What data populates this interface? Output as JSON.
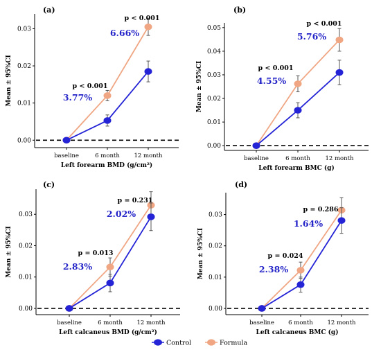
{
  "colors": {
    "control": "#2424d6",
    "formula": "#f0a683",
    "percent_text": "#2424c8"
  },
  "legend": [
    {
      "label": "Control",
      "color": "#2424d6"
    },
    {
      "label": "Formula",
      "color": "#f0a683"
    }
  ],
  "chart_data": [
    {
      "type": "line",
      "panel_label": "(a)",
      "categories": [
        "baseline",
        "6 month",
        "12 month"
      ],
      "xlabel": "Left forearm BMD (g/cm²)",
      "ylabel": "Mean ± 95%CI",
      "ylim": [
        -0.002,
        0.034
      ],
      "yticks": [
        0.0,
        0.01,
        0.02,
        0.03
      ],
      "ytick_labels": [
        "0.00",
        "0.01",
        "0.02",
        "0.03"
      ],
      "reference_line": 0,
      "series": [
        {
          "name": "Control",
          "values": [
            0,
            0.0053,
            0.0185
          ],
          "ci_low": [
            0,
            0.0038,
            0.0157
          ],
          "ci_high": [
            0,
            0.0068,
            0.0213
          ]
        },
        {
          "name": "Formula",
          "values": [
            0,
            0.012,
            0.0305
          ],
          "ci_low": [
            0,
            0.0106,
            0.0282
          ],
          "ci_high": [
            0,
            0.0134,
            0.0328
          ]
        }
      ],
      "annotations": [
        {
          "category": "6 month",
          "p_value": "p < 0.001",
          "percent": "3.77%"
        },
        {
          "category": "12 month",
          "p_value": "p < 0.001",
          "percent": "6.66%"
        }
      ]
    },
    {
      "type": "line",
      "panel_label": "(b)",
      "categories": [
        "baseline",
        "6 month",
        "12 month"
      ],
      "xlabel": "Left forearm BMC (g)",
      "ylabel": "Mean ± 95%CI",
      "ylim": [
        -0.002,
        0.052
      ],
      "yticks": [
        0.0,
        0.01,
        0.02,
        0.03,
        0.04,
        0.05
      ],
      "ytick_labels": [
        "0.00",
        "0.01",
        "0.02",
        "0.03",
        "0.04",
        "0.05"
      ],
      "reference_line": 0,
      "series": [
        {
          "name": "Control",
          "values": [
            0,
            0.015,
            0.031
          ],
          "ci_low": [
            0,
            0.0118,
            0.0258
          ],
          "ci_high": [
            0,
            0.0182,
            0.0362
          ]
        },
        {
          "name": "Formula",
          "values": [
            0,
            0.0262,
            0.0448
          ],
          "ci_low": [
            0,
            0.0228,
            0.04
          ],
          "ci_high": [
            0,
            0.0296,
            0.0496
          ]
        }
      ],
      "annotations": [
        {
          "category": "6 month",
          "p_value": "p < 0.001",
          "percent": "4.55%"
        },
        {
          "category": "12 month",
          "p_value": "p < 0.001",
          "percent": "5.76%"
        }
      ]
    },
    {
      "type": "line",
      "panel_label": "(c)",
      "categories": [
        "baseline",
        "6 month",
        "12 month"
      ],
      "xlabel": "Left calcaneus BMD (g/cm²)",
      "ylabel": "Mean ± 95%CI",
      "ylim": [
        -0.002,
        0.038
      ],
      "yticks": [
        0.0,
        0.01,
        0.02,
        0.03
      ],
      "ytick_labels": [
        "0.00",
        "0.01",
        "0.02",
        "0.03"
      ],
      "reference_line": 0,
      "series": [
        {
          "name": "Control",
          "values": [
            0,
            0.0081,
            0.0292
          ],
          "ci_low": [
            0,
            0.0053,
            0.0248
          ],
          "ci_high": [
            0,
            0.0109,
            0.0336
          ]
        },
        {
          "name": "Formula",
          "values": [
            0,
            0.0132,
            0.0329
          ],
          "ci_low": [
            0,
            0.0103,
            0.0286
          ],
          "ci_high": [
            0,
            0.0161,
            0.0372
          ]
        }
      ],
      "annotations": [
        {
          "category": "6 month",
          "p_value": "p = 0.013",
          "percent": "2.83%"
        },
        {
          "category": "12 month",
          "p_value": "p = 0.231",
          "percent": "2.02%"
        }
      ]
    },
    {
      "type": "line",
      "panel_label": "(d)",
      "categories": [
        "baseline",
        "6 month",
        "12 month"
      ],
      "xlabel": "Left calcaneus BMC (g)",
      "ylabel": "Mean ± 95%CI",
      "ylim": [
        -0.002,
        0.037
      ],
      "yticks": [
        0.0,
        0.01,
        0.02,
        0.03
      ],
      "ytick_labels": [
        "0.00",
        "0.01",
        "0.02",
        "0.03"
      ],
      "reference_line": 0,
      "series": [
        {
          "name": "Control",
          "values": [
            0,
            0.0076,
            0.0281
          ],
          "ci_low": [
            0,
            0.0052,
            0.024
          ],
          "ci_high": [
            0,
            0.01,
            0.0322
          ]
        },
        {
          "name": "Formula",
          "values": [
            0,
            0.0122,
            0.0314
          ],
          "ci_low": [
            0,
            0.0096,
            0.0274
          ],
          "ci_high": [
            0,
            0.0148,
            0.0354
          ]
        }
      ],
      "annotations": [
        {
          "category": "6 month",
          "p_value": "p = 0.024",
          "percent": "2.38%"
        },
        {
          "category": "12 month",
          "p_value": "p = 0.286",
          "percent": "1.64%"
        }
      ]
    }
  ]
}
